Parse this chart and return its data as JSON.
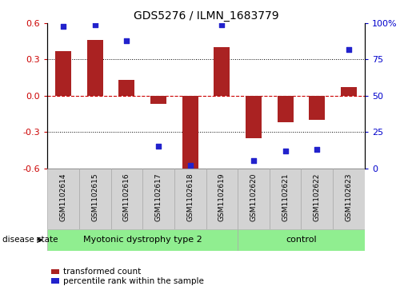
{
  "title": "GDS5276 / ILMN_1683779",
  "samples": [
    "GSM1102614",
    "GSM1102615",
    "GSM1102616",
    "GSM1102617",
    "GSM1102618",
    "GSM1102619",
    "GSM1102620",
    "GSM1102621",
    "GSM1102622",
    "GSM1102623"
  ],
  "bar_values": [
    0.37,
    0.46,
    0.13,
    -0.07,
    -0.62,
    0.4,
    -0.35,
    -0.22,
    -0.2,
    0.07
  ],
  "percentile_values": [
    98,
    99,
    88,
    15,
    2,
    99,
    5,
    12,
    13,
    82
  ],
  "bar_color": "#aa2222",
  "dot_color": "#2222cc",
  "ylim_left": [
    -0.6,
    0.6
  ],
  "ylim_right": [
    0,
    100
  ],
  "yticks_left": [
    -0.6,
    -0.3,
    0.0,
    0.3,
    0.6
  ],
  "yticks_right": [
    0,
    25,
    50,
    75,
    100
  ],
  "ytick_labels_right": [
    "0",
    "25",
    "50",
    "75",
    "100%"
  ],
  "hline_color": "#cc0000",
  "dotted_lines": [
    -0.3,
    0.3
  ],
  "group1_indices": [
    0,
    1,
    2,
    3,
    4,
    5
  ],
  "group2_indices": [
    6,
    7,
    8,
    9
  ],
  "group1_label": "Myotonic dystrophy type 2",
  "group2_label": "control",
  "group1_color": "#90ee90",
  "group2_color": "#90ee90",
  "disease_state_label": "disease state",
  "legend1_label": "transformed count",
  "legend2_label": "percentile rank within the sample",
  "bar_width": 0.5,
  "label_area_color": "#d3d3d3",
  "label_edge_color": "#aaaaaa"
}
